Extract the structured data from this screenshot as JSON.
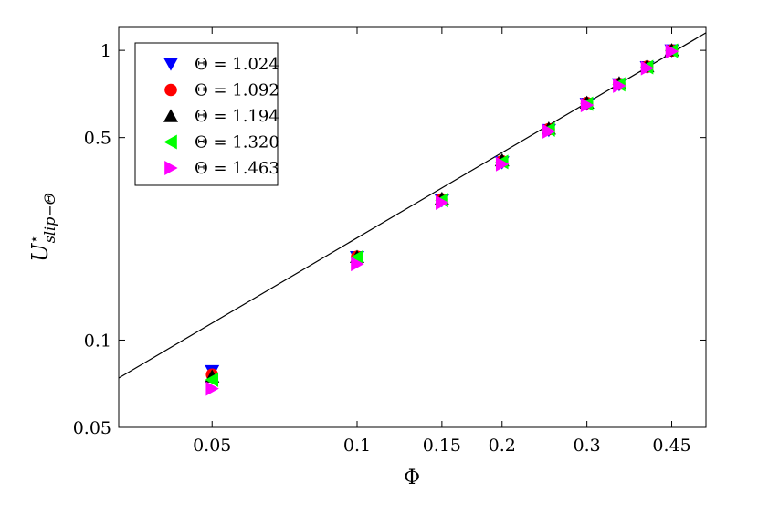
{
  "chart_data": {
    "type": "scatter",
    "xscale": "log",
    "yscale": "log",
    "xlim": [
      0.032,
      0.53
    ],
    "ylim": [
      0.05,
      1.2
    ],
    "xlabel": "Φ",
    "ylabel": "U⋆slip−Θ",
    "ylabel_main": "U",
    "ylabel_sup": "⋆",
    "ylabel_sub": "slip−Θ",
    "xticks": [
      0.05,
      0.1,
      0.15,
      0.2,
      0.3,
      0.45
    ],
    "xtick_labels": [
      "0.05",
      "0.1",
      "0.15",
      "0.2",
      "0.3",
      "0.45"
    ],
    "yticks": [
      0.05,
      0.1,
      0.5,
      1
    ],
    "ytick_labels": [
      "0.05",
      "0.1",
      "0.5",
      "1"
    ],
    "grid": false,
    "legend_position": "top-left",
    "fit_line": {
      "x": [
        0.032,
        0.53
      ],
      "y": [
        0.074,
        1.15
      ]
    },
    "series": [
      {
        "name": "Θ = 1.024",
        "marker": "triangle-down",
        "color": "#0000ff",
        "x": [
          0.05,
          0.1,
          0.15,
          0.2,
          0.25,
          0.3,
          0.35,
          0.4,
          0.45
        ],
        "y": [
          0.078,
          0.193,
          0.303,
          0.41,
          0.53,
          0.653,
          0.762,
          0.873,
          0.998
        ]
      },
      {
        "name": "Θ = 1.092",
        "marker": "circle",
        "color": "#ff0000",
        "x": [
          0.05,
          0.1,
          0.15,
          0.2,
          0.25,
          0.3,
          0.35,
          0.4,
          0.45
        ],
        "y": [
          0.076,
          0.194,
          0.306,
          0.414,
          0.534,
          0.658,
          0.766,
          0.878,
          0.999
        ]
      },
      {
        "name": "Θ = 1.194",
        "marker": "triangle-up",
        "color": "#000000",
        "x": [
          0.05,
          0.1,
          0.15,
          0.2,
          0.25,
          0.3,
          0.35,
          0.4,
          0.45
        ],
        "y": [
          0.075,
          0.194,
          0.308,
          0.418,
          0.538,
          0.661,
          0.772,
          0.883,
          1.003
        ]
      },
      {
        "name": "Θ = 1.320",
        "marker": "triangle-left",
        "color": "#00ff00",
        "x": [
          0.05,
          0.1,
          0.15,
          0.2,
          0.25,
          0.3,
          0.35,
          0.4,
          0.45
        ],
        "y": [
          0.073,
          0.193,
          0.304,
          0.412,
          0.533,
          0.654,
          0.763,
          0.875,
          0.997
        ]
      },
      {
        "name": "Θ = 1.463",
        "marker": "triangle-right",
        "color": "#ff00ff",
        "x": [
          0.05,
          0.1,
          0.15,
          0.2,
          0.25,
          0.3,
          0.35,
          0.4,
          0.45
        ],
        "y": [
          0.068,
          0.183,
          0.298,
          0.405,
          0.525,
          0.647,
          0.755,
          0.868,
          0.992
        ]
      }
    ]
  }
}
